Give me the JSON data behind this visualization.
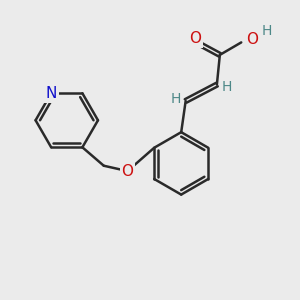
{
  "bg_color": "#ebebeb",
  "bond_color": "#2a2a2a",
  "N_color": "#1010cc",
  "O_color": "#cc1010",
  "H_color": "#4d8888",
  "line_width": 1.8,
  "font_size": 10.5,
  "fig_bg": "#ebebeb",
  "dbo": 0.055,
  "xlim": [
    0,
    10
  ],
  "ylim": [
    0,
    10
  ]
}
